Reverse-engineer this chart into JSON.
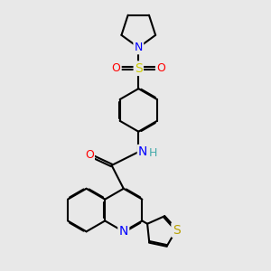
{
  "bg_color": "#e8e8e8",
  "atom_colors": {
    "N": "#0000ff",
    "O": "#ff0000",
    "S_sulfonyl": "#cccc00",
    "S_thienyl": "#b8a000",
    "H": "#44aaaa",
    "C": "#000000"
  },
  "bond_color": "#000000",
  "bond_width": 1.5,
  "font_size": 9,
  "fig_size": [
    3.0,
    3.0
  ],
  "dpi": 100
}
